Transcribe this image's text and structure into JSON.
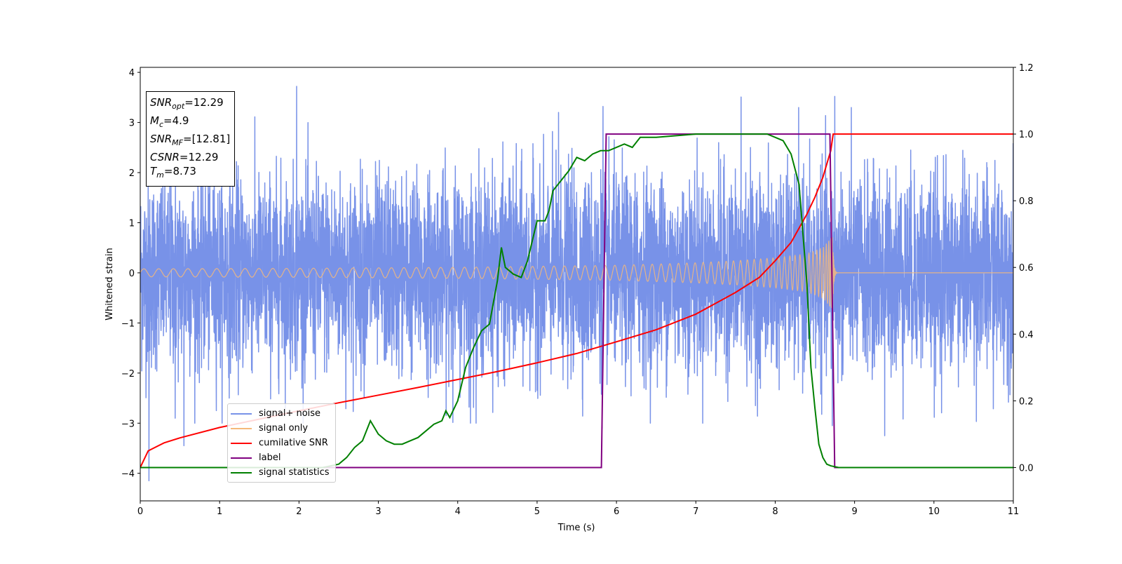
{
  "chart_data": {
    "type": "line",
    "xlabel": "Time (s)",
    "ylabel": "Whitened strain",
    "xlim": [
      0,
      11
    ],
    "ylim_left": [
      -4.55,
      4.1
    ],
    "ylim_right": [
      -0.1,
      1.2
    ],
    "x_ticks": [
      "0",
      "1",
      "2",
      "3",
      "4",
      "5",
      "6",
      "7",
      "8",
      "9",
      "10",
      "11"
    ],
    "y_ticks_left": [
      "−4",
      "−3",
      "−2",
      "−1",
      "0",
      "1",
      "2",
      "3",
      "4"
    ],
    "y_ticks_right": [
      "0.0",
      "0.2",
      "0.4",
      "0.6",
      "0.8",
      "1.0",
      "1.2"
    ],
    "grid": false,
    "legend_position": "lower-left",
    "info_box": [
      {
        "base": "SNR",
        "sub": "opt",
        "rest": "=12.29"
      },
      {
        "base": "M",
        "sub": "c",
        "rest": "=4.9"
      },
      {
        "base": "SNR",
        "sub": "MF",
        "rest": "=[12.81]"
      },
      {
        "base": "CSNR",
        "sub": "",
        "rest": "=12.29"
      },
      {
        "base": "T",
        "sub": "m",
        "rest": "=8.73"
      }
    ],
    "series": [
      {
        "name": "signal+ noise",
        "color": "#7892e8",
        "axis": "left",
        "kind": "noise",
        "noise_std": 0.95,
        "peak_values": [
          {
            "x": 1.97,
            "y": 3.72
          },
          {
            "x": 8.75,
            "y": 3.52
          },
          {
            "x": 7.57,
            "y": 3.51
          },
          {
            "x": 5.83,
            "y": 3.32
          },
          {
            "x": 5.27,
            "y": 3.2
          },
          {
            "x": 0.11,
            "y": -4.15
          },
          {
            "x": 8.72,
            "y": -3.05
          },
          {
            "x": 9.38,
            "y": -3.25
          },
          {
            "x": 5.82,
            "y": -3.1
          },
          {
            "x": 0.55,
            "y": -3.45
          },
          {
            "x": 4.16,
            "y": -3.0
          },
          {
            "x": 0.44,
            "y": -2.9
          }
        ]
      },
      {
        "name": "signal only",
        "color": "#f5b87a",
        "axis": "left",
        "kind": "chirp",
        "merger_time": 8.73,
        "amplitude_points": [
          [
            0,
            0.08
          ],
          [
            2,
            0.09
          ],
          [
            4,
            0.11
          ],
          [
            6,
            0.15
          ],
          [
            7,
            0.2
          ],
          [
            7.5,
            0.24
          ],
          [
            8,
            0.3
          ],
          [
            8.4,
            0.38
          ],
          [
            8.6,
            0.5
          ],
          [
            8.73,
            0.75
          ]
        ]
      },
      {
        "name": "cumilative SNR",
        "color": "#ff0000",
        "axis": "right",
        "x": [
          0,
          0.1,
          0.3,
          0.5,
          1,
          1.5,
          2,
          2.5,
          3,
          3.5,
          4,
          4.5,
          5,
          5.5,
          6,
          6.5,
          7,
          7.5,
          7.8,
          8,
          8.2,
          8.4,
          8.5,
          8.6,
          8.65,
          8.7,
          8.73,
          11
        ],
        "y": [
          0.0,
          0.05,
          0.074,
          0.089,
          0.12,
          0.145,
          0.17,
          0.194,
          0.217,
          0.24,
          0.264,
          0.288,
          0.314,
          0.342,
          0.377,
          0.413,
          0.46,
          0.525,
          0.57,
          0.62,
          0.675,
          0.76,
          0.81,
          0.87,
          0.91,
          0.95,
          1.0,
          1.0
        ]
      },
      {
        "name": "label",
        "color": "#800080",
        "axis": "right",
        "x": [
          0,
          5.81,
          5.87,
          8.69,
          8.75,
          11
        ],
        "y": [
          0.0,
          0.0,
          1.0,
          1.0,
          0.0,
          0.0
        ]
      },
      {
        "name": "signal statistics",
        "color": "#008000",
        "axis": "right",
        "x": [
          0,
          2.3,
          2.5,
          2.6,
          2.7,
          2.8,
          2.9,
          3.0,
          3.1,
          3.2,
          3.3,
          3.4,
          3.5,
          3.6,
          3.7,
          3.8,
          3.85,
          3.9,
          4.0,
          4.1,
          4.2,
          4.3,
          4.4,
          4.5,
          4.55,
          4.6,
          4.7,
          4.8,
          4.88,
          5.0,
          5.1,
          5.15,
          5.2,
          5.3,
          5.4,
          5.5,
          5.6,
          5.7,
          5.8,
          5.9,
          6.0,
          6.1,
          6.2,
          6.3,
          6.4,
          6.5,
          7.0,
          7.5,
          7.9,
          8.0,
          8.1,
          8.2,
          8.3,
          8.4,
          8.45,
          8.5,
          8.55,
          8.6,
          8.65,
          8.7,
          8.8,
          11
        ],
        "y": [
          0.0,
          0.0,
          0.01,
          0.03,
          0.06,
          0.08,
          0.14,
          0.1,
          0.08,
          0.07,
          0.07,
          0.08,
          0.09,
          0.11,
          0.13,
          0.14,
          0.17,
          0.15,
          0.2,
          0.3,
          0.36,
          0.41,
          0.43,
          0.56,
          0.66,
          0.6,
          0.58,
          0.57,
          0.62,
          0.74,
          0.74,
          0.77,
          0.83,
          0.86,
          0.89,
          0.93,
          0.92,
          0.94,
          0.95,
          0.95,
          0.96,
          0.97,
          0.96,
          0.99,
          0.99,
          0.99,
          1.0,
          1.0,
          1.0,
          0.99,
          0.98,
          0.94,
          0.85,
          0.55,
          0.3,
          0.18,
          0.07,
          0.03,
          0.01,
          0.005,
          0.0,
          0.0
        ]
      }
    ]
  }
}
